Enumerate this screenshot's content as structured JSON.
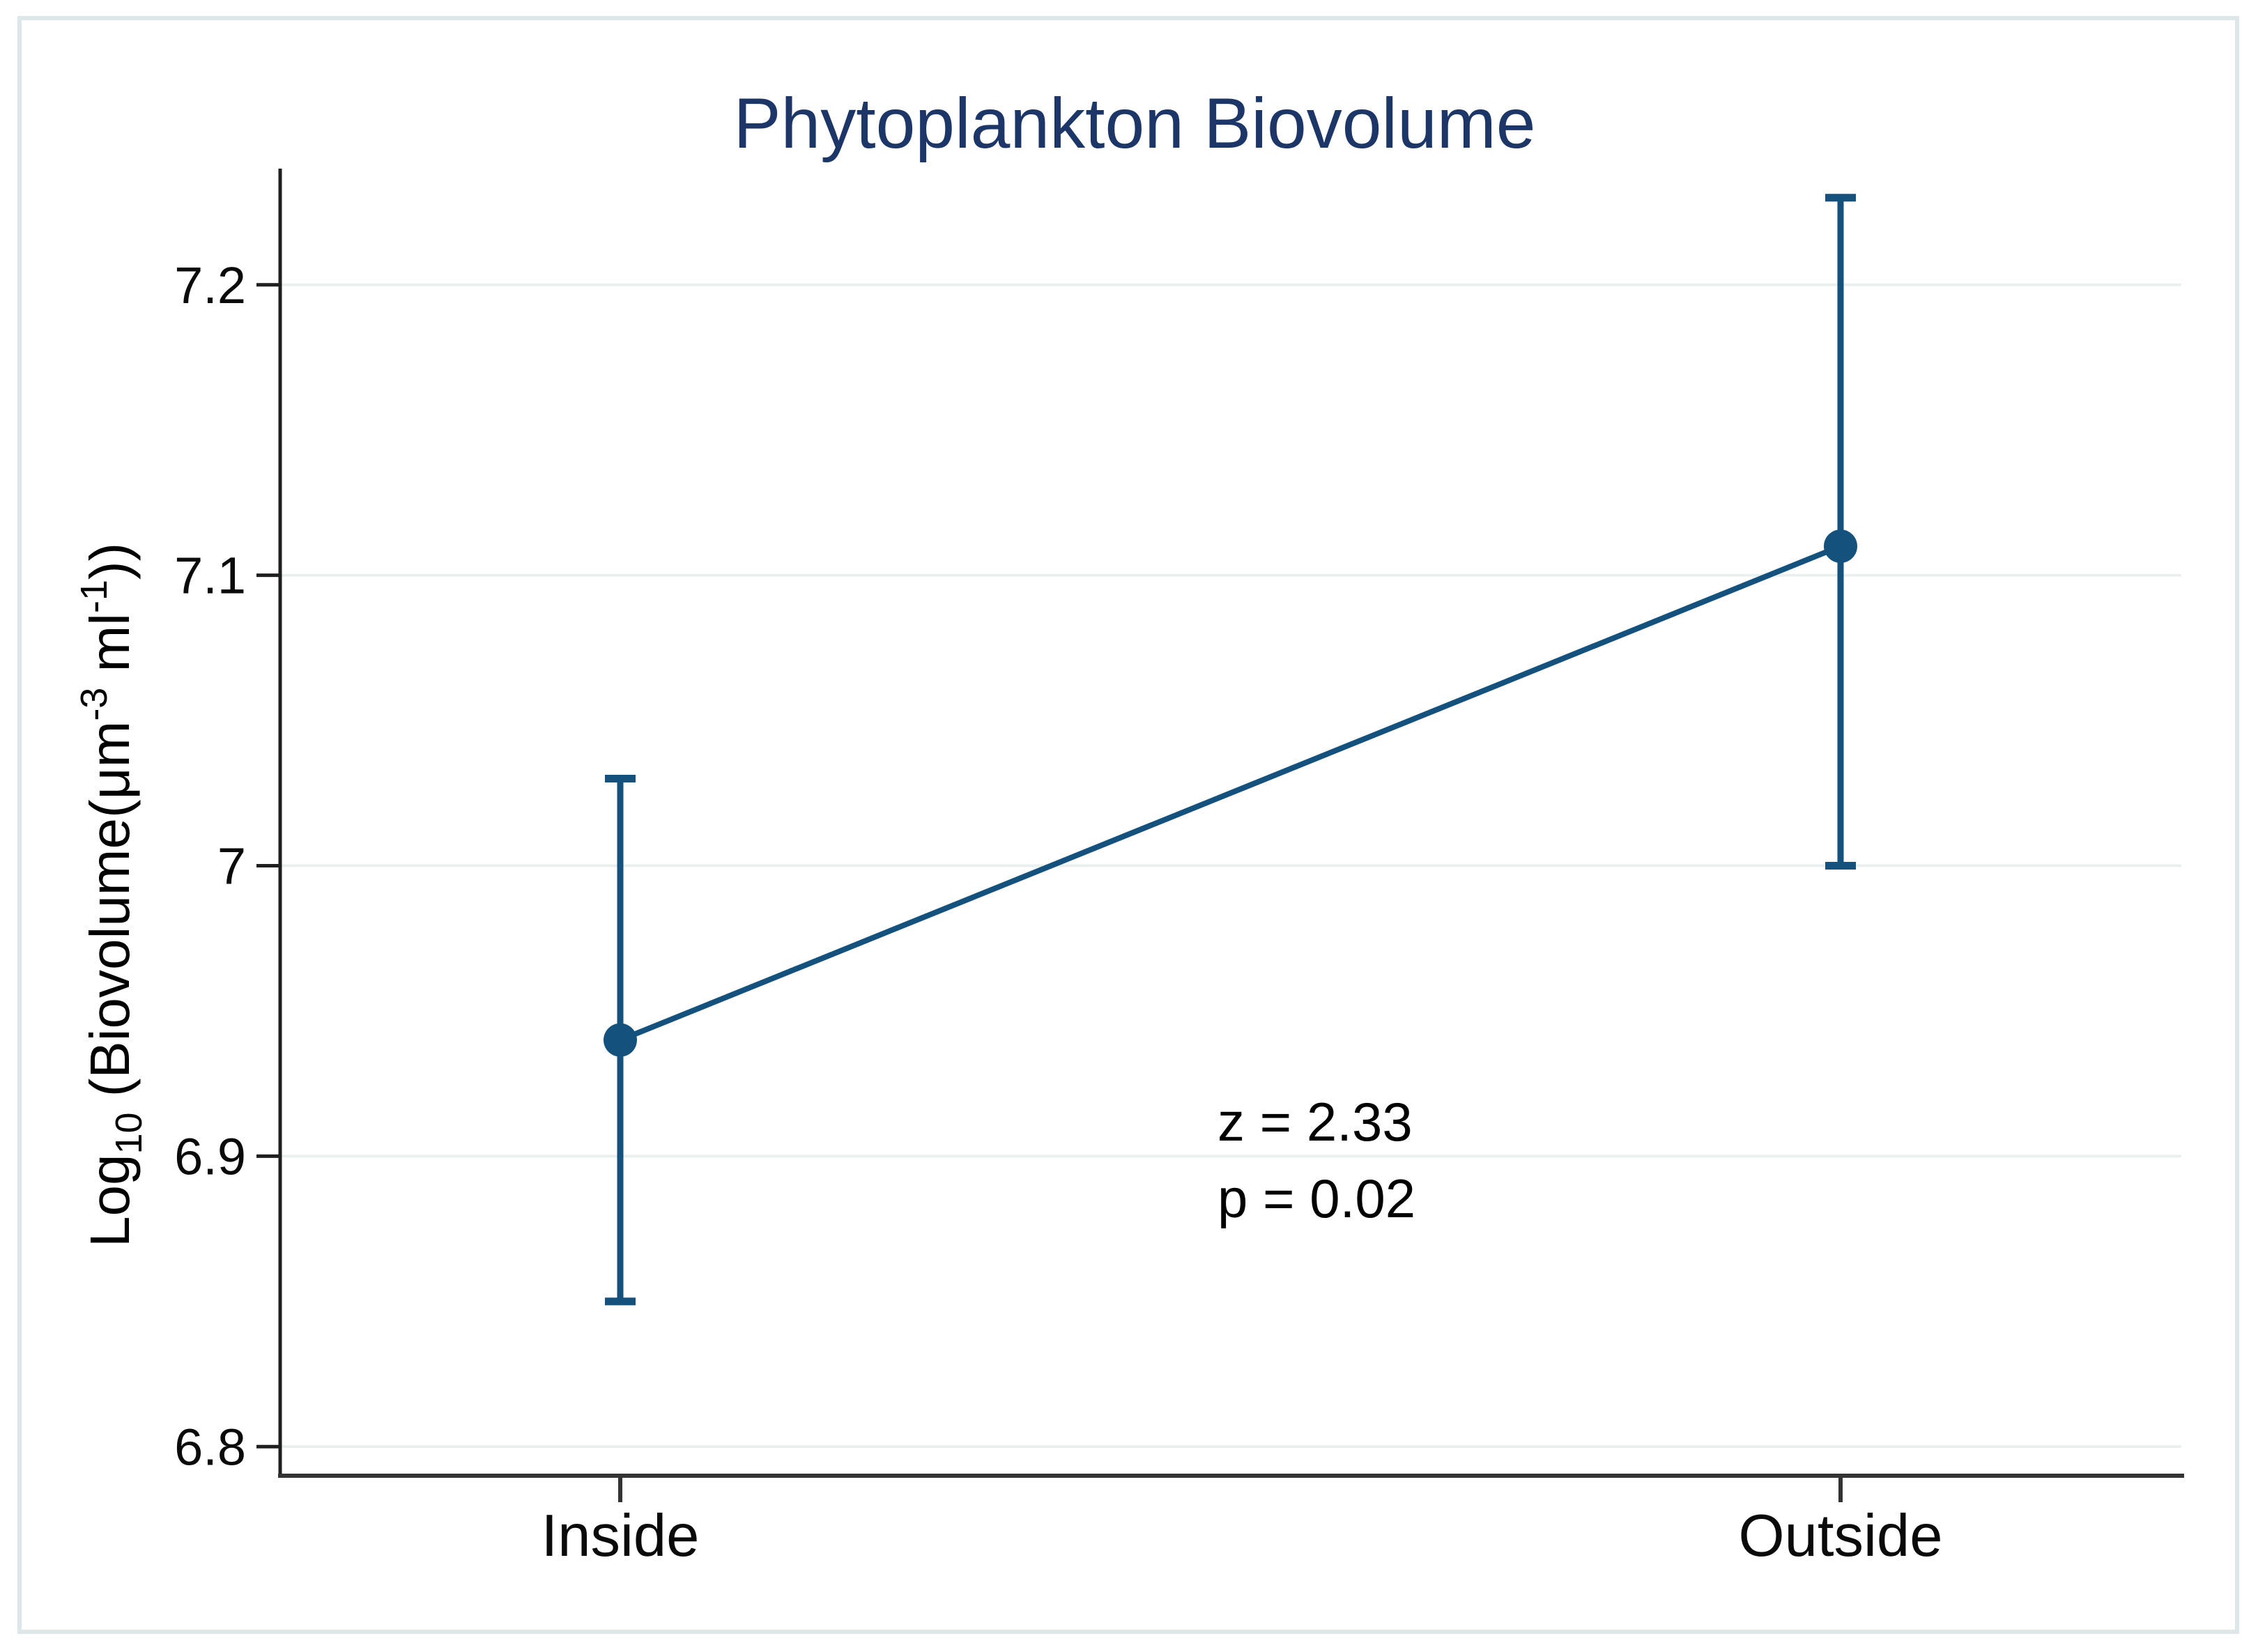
{
  "title": "Phytoplankton Biovolume",
  "annotation": {
    "line1": "z = 2.33",
    "line2": "p = 0.02"
  },
  "y_axis": {
    "label_parts": {
      "p0": "Log",
      "p1": "10",
      "p2": " (Biovolume(μm",
      "p3": "-3",
      "p4": " ml",
      "p5": "-1",
      "p6": "))"
    }
  },
  "chart_data": {
    "type": "line",
    "subtype": "point-estimates-with-error-bars",
    "categories": [
      "Inside",
      "Outside"
    ],
    "values": [
      6.94,
      7.11
    ],
    "ci_low": [
      6.85,
      7.0
    ],
    "ci_high": [
      7.03,
      7.23
    ],
    "title": "Phytoplankton Biovolume",
    "xlabel": "",
    "ylabel": "Log10 (Biovolume(μm-3 ml-1))",
    "ylim": [
      6.79,
      7.24
    ],
    "yticks": [
      6.8,
      6.9,
      7,
      7.1,
      7.2
    ],
    "ytick_labels": [
      "6.8",
      "6.9",
      "7",
      "7.1",
      "7.2"
    ],
    "grid": true,
    "legend": "none",
    "annotations": [
      "z = 2.33",
      "p = 0.02"
    ],
    "colors": {
      "series": "#14527d",
      "gridline": "#e9f0f0",
      "axis": "#2a2a2a",
      "title": "#1c3667",
      "text": "#000000",
      "border": "#dde7ea"
    }
  }
}
